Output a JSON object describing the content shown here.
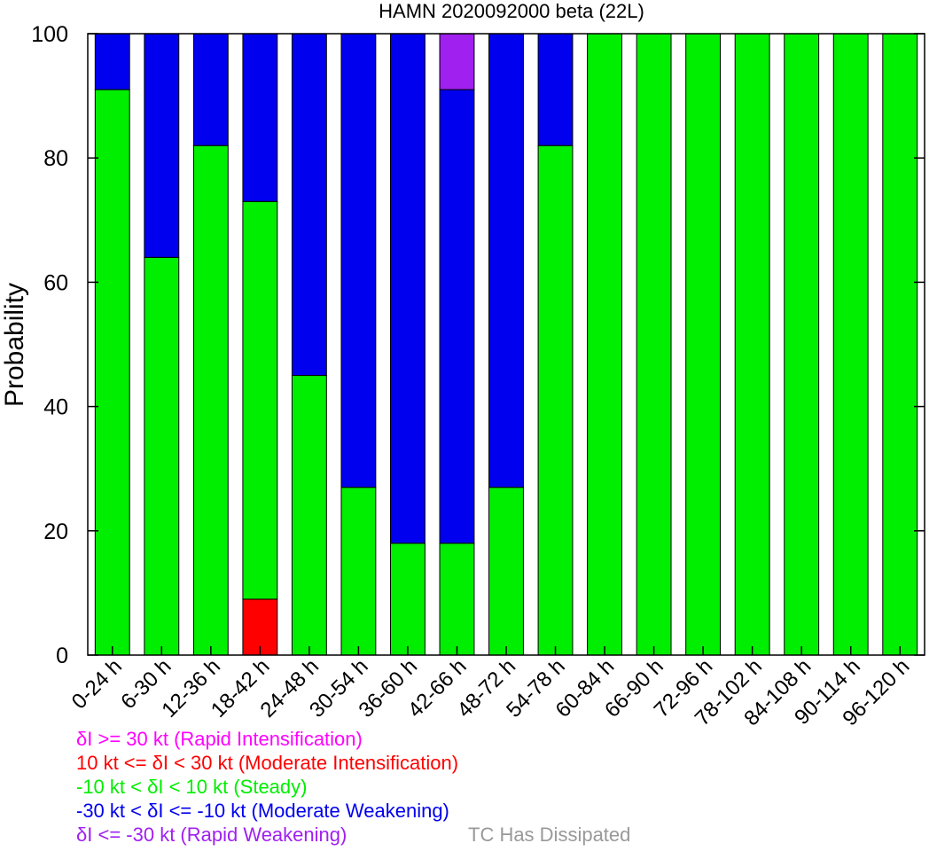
{
  "chart_data": {
    "type": "bar",
    "stacked": true,
    "title": "HAMN 2020092000 beta (22L)",
    "xlabel": "",
    "ylabel": "Probability",
    "ylim": [
      0,
      100
    ],
    "yticks": [
      0,
      20,
      40,
      60,
      80,
      100
    ],
    "grid": false,
    "categories": [
      "0-24 h",
      "6-30 h",
      "12-36 h",
      "18-42 h",
      "24-48 h",
      "30-54 h",
      "36-60 h",
      "42-66 h",
      "48-72 h",
      "54-78 h",
      "60-84 h",
      "66-90 h",
      "72-96 h",
      "78-102 h",
      "84-108 h",
      "90-114 h",
      "96-120 h"
    ],
    "series": [
      {
        "name": "δI >= 30 kt (Rapid Intensification)",
        "color": "#ff00ff",
        "values": [
          0,
          0,
          0,
          0,
          0,
          0,
          0,
          0,
          0,
          0,
          0,
          0,
          0,
          0,
          0,
          0,
          0
        ]
      },
      {
        "name": "10 kt <= δI < 30 kt (Moderate Intensification)",
        "color": "#ff0000",
        "values": [
          0,
          0,
          0,
          9,
          0,
          0,
          0,
          0,
          0,
          0,
          0,
          0,
          0,
          0,
          0,
          0,
          0
        ]
      },
      {
        "name": "-10 kt < δI < 10 kt (Steady)",
        "color": "#00ee00",
        "values": [
          91,
          64,
          82,
          64,
          45,
          27,
          18,
          18,
          27,
          82,
          100,
          100,
          100,
          100,
          100,
          100,
          100
        ]
      },
      {
        "name": "-30 kt < δI <= -10 kt (Moderate Weakening)",
        "color": "#0000ee",
        "values": [
          9,
          36,
          18,
          27,
          55,
          73,
          82,
          73,
          73,
          18,
          0,
          0,
          0,
          0,
          0,
          0,
          0
        ]
      },
      {
        "name": "δI <= -30 kt (Rapid Weakening)",
        "color": "#a020f0",
        "values": [
          0,
          0,
          0,
          0,
          0,
          0,
          0,
          9,
          0,
          0,
          0,
          0,
          0,
          0,
          0,
          0,
          0
        ]
      }
    ],
    "dissipated_label": "TC Has Dissipated",
    "dissipated_color": "#999999"
  }
}
